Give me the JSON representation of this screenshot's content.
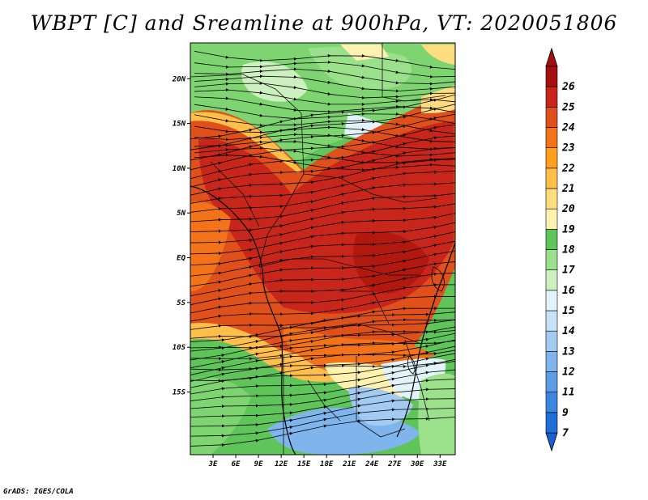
{
  "title": "WBPT [C] and Sreamline at 900hPa, VT: 2020051806",
  "credit": "GrADS: IGES/COLA",
  "map": {
    "lon_range": [
      0,
      35
    ],
    "lat_range": [
      -22,
      24
    ],
    "lat_ticks": [
      {
        "value": 20,
        "label": "20N"
      },
      {
        "value": 15,
        "label": "15N"
      },
      {
        "value": 10,
        "label": "10N"
      },
      {
        "value": 5,
        "label": "5N"
      },
      {
        "value": 0,
        "label": "EQ"
      },
      {
        "value": -5,
        "label": "5S"
      },
      {
        "value": -10,
        "label": "10S"
      },
      {
        "value": -15,
        "label": "15S"
      }
    ],
    "lon_ticks": [
      {
        "value": 3,
        "label": "3E"
      },
      {
        "value": 6,
        "label": "6E"
      },
      {
        "value": 9,
        "label": "9E"
      },
      {
        "value": 12,
        "label": "12E"
      },
      {
        "value": 15,
        "label": "15E"
      },
      {
        "value": 18,
        "label": "18E"
      },
      {
        "value": 21,
        "label": "21E"
      },
      {
        "value": 24,
        "label": "24E"
      },
      {
        "value": 27,
        "label": "27E"
      },
      {
        "value": 30,
        "label": "30E"
      },
      {
        "value": 33,
        "label": "33E"
      }
    ]
  },
  "colorbar": {
    "levels": [
      {
        "label": "7",
        "color": "#1f6fd6"
      },
      {
        "label": "9",
        "color": "#3d86e0"
      },
      {
        "label": "11",
        "color": "#5c9de6"
      },
      {
        "label": "12",
        "color": "#7fb4ec"
      },
      {
        "label": "13",
        "color": "#a3cbf2"
      },
      {
        "label": "14",
        "color": "#c6e2f7"
      },
      {
        "label": "15",
        "color": "#e2f3fb"
      },
      {
        "label": "16",
        "color": "#cdf0c0"
      },
      {
        "label": "17",
        "color": "#9be08a"
      },
      {
        "label": "18",
        "color": "#5fc45a"
      },
      {
        "label": "19",
        "color": "#fff2b0"
      },
      {
        "label": "20",
        "color": "#ffdc80"
      },
      {
        "label": "21",
        "color": "#ffbf4a"
      },
      {
        "label": "22",
        "color": "#ff9f1c"
      },
      {
        "label": "23",
        "color": "#f2731a"
      },
      {
        "label": "24",
        "color": "#e0501a"
      },
      {
        "label": "25",
        "color": "#c8261a"
      },
      {
        "label": "26",
        "color": "#a5100e"
      }
    ],
    "lower_color": "#1a5fd0",
    "upper_color": "#a0100e"
  }
}
